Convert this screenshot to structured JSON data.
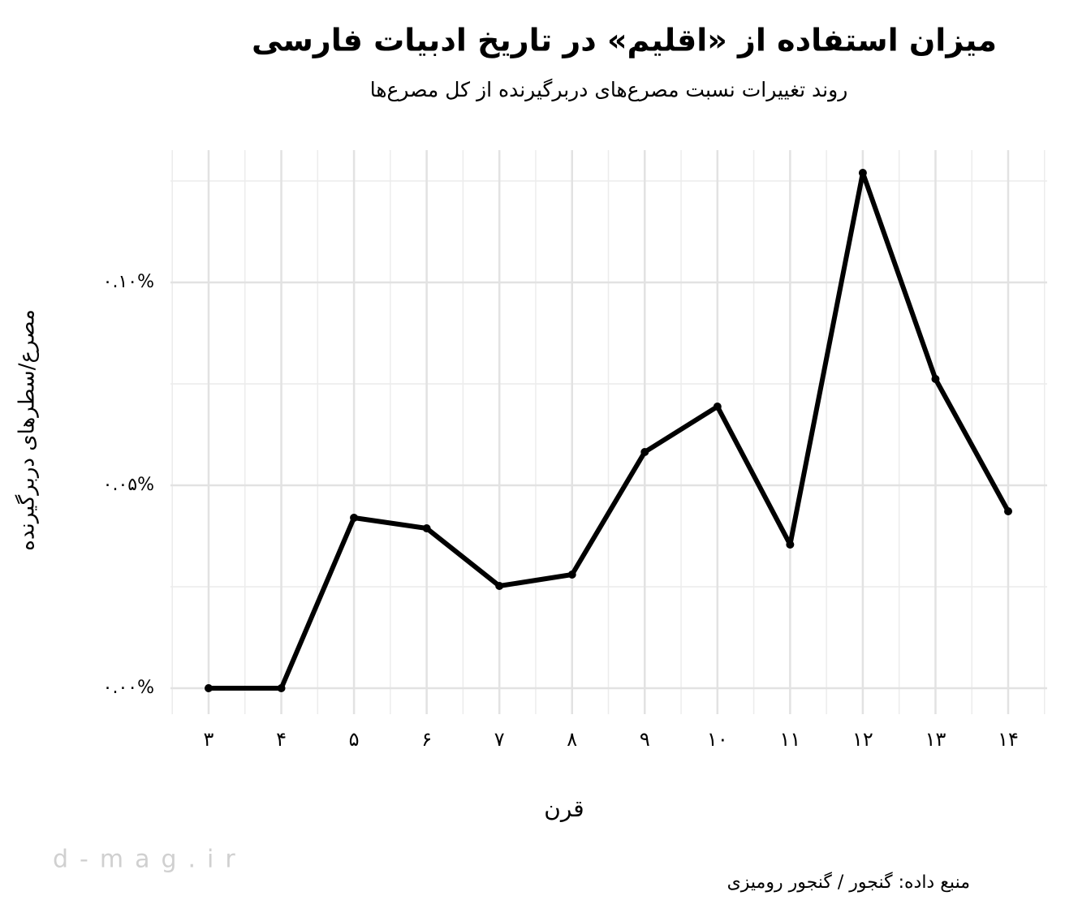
{
  "chart_data": {
    "type": "line",
    "title": "میزان استفاده از «اقلیم» در تاریخ ادبیات فارسی",
    "subtitle": "روند تغییرات نسبت مصرع‌های دربرگیرنده از کل مصرع‌ها",
    "x_label": "قرن",
    "y_label": "مصرع/سطرهای دربرگیرنده",
    "source": "منبع داده: گنجور / گنجور رومیزی",
    "watermark": "d-mag.ir",
    "categories": [
      "۳",
      "۴",
      "۵",
      "۶",
      "۷",
      "۸",
      "۹",
      "۱۰",
      "۱۱",
      "۱۲",
      "۱۳",
      "۱۴"
    ],
    "series": [
      {
        "color": "#000000",
        "values": [
          0,
          0,
          0.042,
          0.0394,
          0.0252,
          0.028,
          0.0582,
          0.0694,
          0.0354,
          0.127,
          0.0762,
          0.0436
        ]
      }
    ],
    "ylim": [
      -0.0064,
      0.1326
    ],
    "yticks": [
      {
        "value": 0,
        "label": "۰.۰۰%"
      },
      {
        "value": 0.05,
        "label": "۰.۰۵%"
      },
      {
        "value": 0.1,
        "label": "۰.۱۰%"
      }
    ],
    "grid": true
  }
}
